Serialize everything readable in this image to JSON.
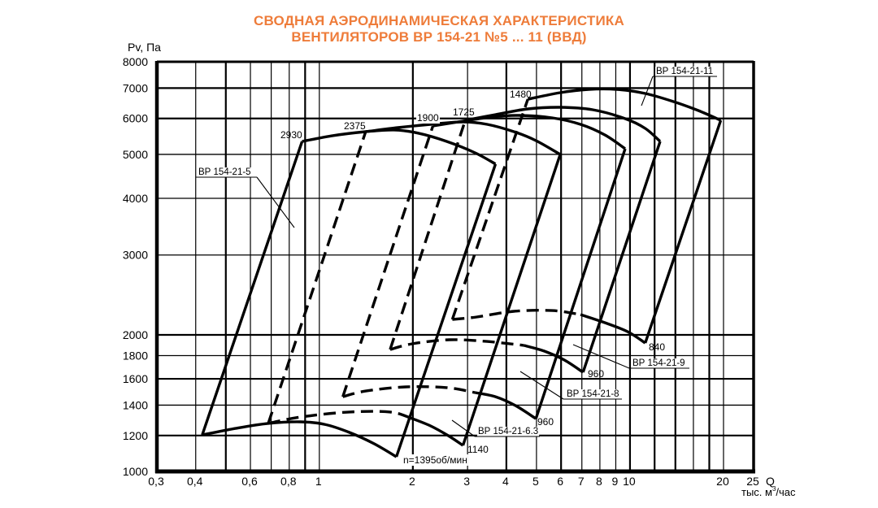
{
  "title": {
    "line1": "СВОДНАЯ АЭРОДИНАМИЧЕСКАЯ ХАРАКТЕРИСТИКА",
    "line2": "ВЕНТИЛЯТОРОВ ВР 154-21 №5 ... 11 (ВВД)",
    "color": "#EE7C3A"
  },
  "axes": {
    "y_label": "Pv, Па",
    "x_label": "Q",
    "x_unit_prefix": "тыс. м",
    "x_unit_sup": "3",
    "x_unit_suffix": "/час"
  },
  "chart_data": {
    "type": "line",
    "title": "СВОДНАЯ АЭРОДИНАМИЧЕСКАЯ ХАРАКТЕРИСТИКА ВЕНТИЛЯТОРОВ ВР 154-21 №5 ... 11 (ВВД)",
    "xlabel": "Q, тыс. м³/час",
    "ylabel": "Pv, Па",
    "xscale": "log",
    "yscale": "log",
    "xlim": [
      0.3,
      25
    ],
    "ylim": [
      1000,
      8000
    ],
    "grid": true,
    "x_ticks": [
      {
        "v": 0.3,
        "label": "0,3"
      },
      {
        "v": 0.4,
        "label": "0,4"
      },
      {
        "v": 0.6,
        "label": "0,6"
      },
      {
        "v": 0.8,
        "label": "0,8"
      },
      {
        "v": 1,
        "label": "1"
      },
      {
        "v": 2,
        "label": "2"
      },
      {
        "v": 3,
        "label": "3"
      },
      {
        "v": 4,
        "label": "4"
      },
      {
        "v": 5,
        "label": "5"
      },
      {
        "v": 6,
        "label": "6"
      },
      {
        "v": 7,
        "label": "7"
      },
      {
        "v": 8,
        "label": "8"
      },
      {
        "v": 9,
        "label": "9"
      },
      {
        "v": 10,
        "label": "10"
      },
      {
        "v": 20,
        "label": "20"
      },
      {
        "v": 25,
        "label": "25"
      }
    ],
    "y_ticks": [
      {
        "v": 8000,
        "label": "8000"
      },
      {
        "v": 7000,
        "label": "7000"
      },
      {
        "v": 6000,
        "label": "6000"
      },
      {
        "v": 5000,
        "label": "5000"
      },
      {
        "v": 4000,
        "label": "4000"
      },
      {
        "v": 3000,
        "label": "3000"
      },
      {
        "v": 2000,
        "label": "2000"
      },
      {
        "v": 1800,
        "label": "1800"
      },
      {
        "v": 1600,
        "label": "1600"
      },
      {
        "v": 1400,
        "label": "1400"
      },
      {
        "v": 1200,
        "label": "1200"
      },
      {
        "v": 1000,
        "label": "1000"
      }
    ],
    "x_grid": [
      0.4,
      0.5,
      0.6,
      0.7,
      0.8,
      0.9,
      1,
      2,
      3,
      4,
      5,
      6,
      7,
      8,
      9,
      10,
      12,
      14,
      16,
      18,
      20
    ],
    "y_grid": [
      1200,
      1400,
      1600,
      1800,
      2000,
      3000,
      4000,
      5000,
      6000,
      7000
    ],
    "series": [
      {
        "name": "ВР 154-21-5",
        "id": "5",
        "n_max": 2930,
        "n_min": 1395,
        "left_style": "solid",
        "left": [
          [
            0.42,
            1204
          ],
          [
            0.88,
            5340
          ]
        ],
        "top": [
          [
            0.88,
            5340
          ],
          [
            1.11,
            5500
          ],
          [
            1.41,
            5610
          ],
          [
            1.74,
            5660
          ],
          [
            2.08,
            5570
          ],
          [
            2.57,
            5340
          ],
          [
            3.17,
            5040
          ],
          [
            3.69,
            4760
          ]
        ],
        "right": [
          [
            3.69,
            4760
          ],
          [
            1.77,
            1077
          ]
        ],
        "bottom_dashed": [],
        "bottom_solid": [
          [
            0.42,
            1204
          ],
          [
            0.54,
            1245
          ],
          [
            0.685,
            1276
          ],
          [
            0.87,
            1286
          ],
          [
            1.04,
            1270
          ],
          [
            1.25,
            1219
          ],
          [
            1.5,
            1151
          ],
          [
            1.77,
            1077
          ]
        ]
      },
      {
        "name": "ВР 154-21-6.3",
        "id": "6-3",
        "n_max": 2375,
        "n_min": 1140,
        "left_style": "dashed",
        "left": [
          [
            0.685,
            1276
          ],
          [
            1.41,
            5610
          ]
        ],
        "top": [
          [
            1.41,
            5610
          ],
          [
            1.79,
            5727
          ],
          [
            2.28,
            5823
          ],
          [
            2.9,
            5895
          ],
          [
            3.47,
            5823
          ],
          [
            4.23,
            5610
          ],
          [
            4.98,
            5362
          ],
          [
            5.96,
            4998
          ]
        ],
        "right": [
          [
            5.96,
            4998
          ],
          [
            2.9,
            1141
          ]
        ],
        "bottom_dashed": [
          [
            0.685,
            1276
          ],
          [
            0.87,
            1318
          ],
          [
            1.25,
            1352
          ],
          [
            1.69,
            1352
          ],
          [
            1.96,
            1313
          ]
        ],
        "bottom_solid": [
          [
            1.96,
            1313
          ],
          [
            2.28,
            1260
          ],
          [
            2.6,
            1199
          ],
          [
            2.9,
            1141
          ]
        ]
      },
      {
        "name": "ВР 154-21-8",
        "id": "8",
        "n_max": 1900,
        "n_min": 960,
        "left_style": "dashed",
        "left": [
          [
            1.19,
            1461
          ],
          [
            2.32,
            5775
          ]
        ],
        "top": [
          [
            2.32,
            5775
          ],
          [
            2.9,
            5919
          ],
          [
            3.58,
            6043
          ],
          [
            4.42,
            6093
          ],
          [
            5.62,
            6018
          ],
          [
            6.93,
            5823
          ],
          [
            8.3,
            5519
          ],
          [
            9.65,
            5144
          ]
        ],
        "right": [
          [
            9.65,
            5144
          ],
          [
            4.98,
            1307
          ]
        ],
        "bottom_dashed": [
          [
            1.19,
            1461
          ],
          [
            1.41,
            1504
          ],
          [
            1.9,
            1536
          ],
          [
            2.57,
            1530
          ],
          [
            3.17,
            1492
          ]
        ],
        "bottom_solid": [
          [
            3.17,
            1492
          ],
          [
            3.69,
            1461
          ],
          [
            4.28,
            1397
          ],
          [
            4.98,
            1307
          ]
        ]
      },
      {
        "name": "ВР 154-21-9",
        "id": "9",
        "n_max": 1725,
        "n_min": 960,
        "left_style": "dashed",
        "left": [
          [
            1.69,
            1857
          ],
          [
            2.95,
            5943
          ]
        ],
        "top": [
          [
            2.95,
            5943
          ],
          [
            3.69,
            6118
          ],
          [
            4.69,
            6297
          ],
          [
            5.96,
            6349
          ],
          [
            7.58,
            6272
          ],
          [
            9.65,
            5994
          ],
          [
            11.2,
            5704
          ],
          [
            12.5,
            5340
          ]
        ],
        "right": [
          [
            12.5,
            5340
          ],
          [
            7.06,
            1654
          ]
        ],
        "bottom_dashed": [
          [
            1.69,
            1857
          ],
          [
            1.99,
            1911
          ],
          [
            2.62,
            1951
          ],
          [
            3.47,
            1934
          ],
          [
            4.55,
            1896
          ]
        ],
        "bottom_solid": [
          [
            4.55,
            1896
          ],
          [
            5.29,
            1842
          ],
          [
            6.15,
            1760
          ],
          [
            7.06,
            1654
          ]
        ]
      },
      {
        "name": "ВР 154-21-11",
        "id": "11",
        "n_max": 1480,
        "n_min": 840,
        "left_style": "dashed",
        "left": [
          [
            2.68,
            2163
          ],
          [
            4.69,
            6617
          ]
        ],
        "top": [
          [
            4.69,
            6617
          ],
          [
            5.96,
            6839
          ],
          [
            7.36,
            6953
          ],
          [
            9.08,
            6953
          ],
          [
            11.2,
            6811
          ],
          [
            13.8,
            6536
          ],
          [
            16.6,
            6245
          ],
          [
            19.6,
            5943
          ]
        ],
        "right": [
          [
            19.6,
            5943
          ],
          [
            11.2,
            1919
          ]
        ],
        "bottom_dashed": [
          [
            2.68,
            2163
          ],
          [
            3.21,
            2190
          ],
          [
            4.23,
            2254
          ],
          [
            5.62,
            2263
          ],
          [
            6.93,
            2217
          ]
        ],
        "bottom_solid": [
          [
            6.93,
            2217
          ],
          [
            8.3,
            2128
          ],
          [
            9.82,
            2033
          ],
          [
            11.2,
            1919
          ]
        ]
      }
    ],
    "annotations": [
      {
        "kind": "speed",
        "text": "2930",
        "px": [
          345,
          170
        ]
      },
      {
        "kind": "speed",
        "text": "2375",
        "px": [
          423,
          159
        ]
      },
      {
        "kind": "speed",
        "text": "1900",
        "px": [
          513,
          149
        ],
        "bg": true
      },
      {
        "kind": "speed",
        "text": "1725",
        "px": [
          557,
          142
        ]
      },
      {
        "kind": "speed",
        "text": "1480",
        "px": [
          627,
          120
        ]
      },
      {
        "kind": "speed",
        "text": "1140",
        "px": [
          575,
          557
        ]
      },
      {
        "kind": "speed",
        "text": "n=1395об/мин",
        "px": [
          496,
          570
        ],
        "bg": true
      },
      {
        "kind": "speed",
        "text": "960",
        "px": [
          661,
          523
        ]
      },
      {
        "kind": "speed",
        "text": "960",
        "px": [
          723,
          464
        ]
      },
      {
        "kind": "speed",
        "text": "840",
        "px": [
          798,
          431
        ]
      },
      {
        "kind": "fan",
        "text": "ВР 154-21-5",
        "px": [
          244,
          215
        ],
        "underline": [
          241,
          316,
          218
        ],
        "leader": [
          [
            316,
            218
          ],
          [
            362,
            280
          ]
        ]
      },
      {
        "kind": "fan",
        "text": "ВР 154-21-6.3",
        "px": [
          588,
          534
        ],
        "underline": [
          584,
          664,
          537
        ],
        "leader": [
          [
            556,
            517
          ],
          [
            584,
            537
          ]
        ]
      },
      {
        "kind": "fan",
        "text": "ВР 154-21-8",
        "px": [
          697,
          488
        ],
        "underline": [
          693,
          765,
          491
        ],
        "leader": [
          [
            640,
            457
          ],
          [
            693,
            491
          ]
        ]
      },
      {
        "kind": "fan",
        "text": "ВР 154-21-9",
        "px": [
          778,
          450
        ],
        "underline": [
          774,
          848,
          453
        ],
        "leader": [
          [
            705,
            424
          ],
          [
            774,
            453
          ]
        ]
      },
      {
        "kind": "fan",
        "text": "ВР 154-21-11",
        "px": [
          807,
          91
        ],
        "underline": [
          803,
          882,
          94
        ],
        "leader": [
          [
            803,
            94
          ],
          [
            789,
            130
          ]
        ]
      }
    ]
  }
}
